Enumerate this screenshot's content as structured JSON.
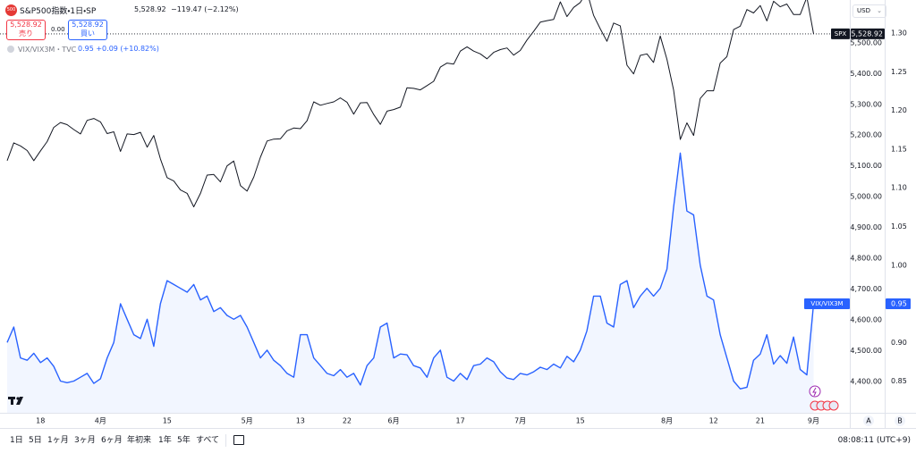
{
  "header": {
    "logo": "500",
    "symbol": "S&P500指数・1日・SP",
    "price": "5,528.92",
    "change": "−119.47 (−2.12%)",
    "sell": {
      "price": "5,528.92",
      "label": "売り"
    },
    "spread": "0.00",
    "buy": {
      "price": "5,528.92",
      "label": "買い"
    },
    "study": {
      "name": "VIX/VIX3M・TVC",
      "values": "0.95 +0.09 (+10.82%)"
    },
    "currency": "USD"
  },
  "chart_data": {
    "type": "line",
    "categories": [
      null,
      null,
      null,
      null,
      null,
      "18",
      null,
      null,
      null,
      null,
      null,
      null,
      null,
      null,
      "4月",
      null,
      null,
      null,
      null,
      null,
      null,
      null,
      null,
      null,
      "15",
      null,
      null,
      null,
      null,
      null,
      null,
      null,
      null,
      null,
      null,
      null,
      "5月",
      null,
      null,
      null,
      null,
      null,
      null,
      null,
      "13",
      null,
      null,
      null,
      null,
      null,
      null,
      "22",
      null,
      null,
      null,
      null,
      null,
      null,
      "6月",
      null,
      null,
      null,
      null,
      null,
      null,
      null,
      null,
      null,
      "17",
      null,
      null,
      null,
      null,
      null,
      null,
      null,
      null,
      "7月",
      null,
      null,
      null,
      null,
      null,
      null,
      null,
      null,
      "15",
      null,
      null,
      null,
      null,
      null,
      null,
      null,
      null,
      null,
      null,
      null,
      null,
      "8月",
      null,
      null,
      null,
      null,
      null,
      null,
      "12",
      null,
      null,
      null,
      null,
      null,
      null,
      "21",
      null,
      null,
      null,
      null,
      null,
      null,
      null,
      "9月"
    ],
    "series": [
      {
        "name": "SPX",
        "color": "#131722",
        "axis": "y",
        "last_label": "5,528.92",
        "values": [
          5117,
          5175,
          5165,
          5150,
          5117,
          5149,
          5179,
          5225,
          5241,
          5234,
          5218,
          5204,
          5248,
          5254,
          5243,
          5205,
          5211,
          5147,
          5204,
          5202,
          5209,
          5161,
          5199,
          5123,
          5062,
          5051,
          5022,
          5011,
          4967,
          5011,
          5070,
          5072,
          5048,
          5100,
          5116,
          5036,
          5018,
          5064,
          5128,
          5181,
          5187,
          5188,
          5214,
          5223,
          5221,
          5247,
          5308,
          5297,
          5303,
          5308,
          5321,
          5307,
          5268,
          5305,
          5306,
          5267,
          5235,
          5278,
          5283,
          5291,
          5354,
          5352,
          5347,
          5361,
          5375,
          5421,
          5434,
          5431,
          5473,
          5487,
          5473,
          5464,
          5448,
          5469,
          5478,
          5483,
          5460,
          5475,
          5509,
          5537,
          5567,
          5572,
          5576,
          5633,
          5585,
          5615,
          5631,
          5667,
          5589,
          5545,
          5505,
          5564,
          5555,
          5427,
          5399,
          5459,
          5464,
          5436,
          5522,
          5446,
          5347,
          5186,
          5240,
          5199,
          5319,
          5344,
          5344,
          5434,
          5455,
          5543,
          5554,
          5608,
          5597,
          5621,
          5571,
          5635,
          5617,
          5626,
          5592,
          5592,
          5648,
          5528.92
        ]
      },
      {
        "name": "VIX/VIX3M",
        "color": "#2962ff",
        "axis": "y2",
        "last_label": "0.95",
        "values": [
          0.9,
          0.92,
          0.88,
          0.877,
          0.886,
          0.874,
          0.88,
          0.869,
          0.85,
          0.848,
          0.85,
          0.855,
          0.86,
          0.847,
          0.853,
          0.88,
          0.9,
          0.95,
          0.93,
          0.91,
          0.905,
          0.93,
          0.895,
          0.95,
          0.98,
          0.975,
          0.97,
          0.965,
          0.975,
          0.955,
          0.96,
          0.94,
          0.945,
          0.935,
          0.93,
          0.935,
          0.92,
          0.9,
          0.88,
          0.89,
          0.877,
          0.87,
          0.86,
          0.855,
          0.91,
          0.91,
          0.88,
          0.87,
          0.86,
          0.857,
          0.865,
          0.855,
          0.86,
          0.845,
          0.87,
          0.88,
          0.92,
          0.925,
          0.88,
          0.885,
          0.884,
          0.87,
          0.867,
          0.855,
          0.88,
          0.89,
          0.855,
          0.85,
          0.86,
          0.852,
          0.87,
          0.872,
          0.88,
          0.875,
          0.862,
          0.854,
          0.852,
          0.86,
          0.858,
          0.862,
          0.868,
          0.865,
          0.872,
          0.867,
          0.882,
          0.875,
          0.89,
          0.915,
          0.96,
          0.96,
          0.925,
          0.92,
          0.975,
          0.98,
          0.945,
          0.96,
          0.97,
          0.96,
          0.97,
          0.995,
          1.075,
          1.145,
          1.07,
          1.065,
          1.0,
          0.96,
          0.955,
          0.91,
          0.88,
          0.85,
          0.84,
          0.842,
          0.877,
          0.885,
          0.91,
          0.872,
          0.883,
          0.873,
          0.907,
          0.865,
          0.858,
          0.95
        ]
      }
    ],
    "ylim": [
      4298,
      5639
    ],
    "yticks": [
      {
        "value": 4400,
        "label": "4,400.00"
      },
      {
        "value": 4500,
        "label": "4,500.00"
      },
      {
        "value": 4600,
        "label": "4,600.00"
      },
      {
        "value": 4700,
        "label": "4,700.00"
      },
      {
        "value": 4800,
        "label": "4,800.00"
      },
      {
        "value": 4900,
        "label": "4,900.00"
      },
      {
        "value": 5000,
        "label": "5,000.00"
      },
      {
        "value": 5100,
        "label": "5,100.00"
      },
      {
        "value": 5200,
        "label": "5,200.00"
      },
      {
        "value": 5300,
        "label": "5,300.00"
      },
      {
        "value": 5400,
        "label": "5,400.00"
      },
      {
        "value": 5500,
        "label": "5,500.00"
      }
    ],
    "y2lim": [
      0.809,
      1.343
    ],
    "y2ticks": [
      0.85,
      {
        "value": 0.9,
        "label": "0.90"
      },
      0.95,
      {
        "value": 1,
        "label": "1.00"
      },
      1.05,
      {
        "value": 1.1,
        "label": "1.10"
      },
      1.15,
      {
        "value": 1.2,
        "label": "1.20"
      },
      1.25,
      {
        "value": 1.3,
        "label": "1.30"
      }
    ],
    "grid": false
  },
  "axis_buttons": [
    "A",
    "B"
  ],
  "footer": {
    "ranges": [
      "1日",
      "5日",
      "1ヶ月",
      "3ヶ月",
      "6ヶ月",
      "年初来",
      "1年",
      "5年",
      "すべて"
    ],
    "time": "08:08:11 (UTC+9)"
  }
}
